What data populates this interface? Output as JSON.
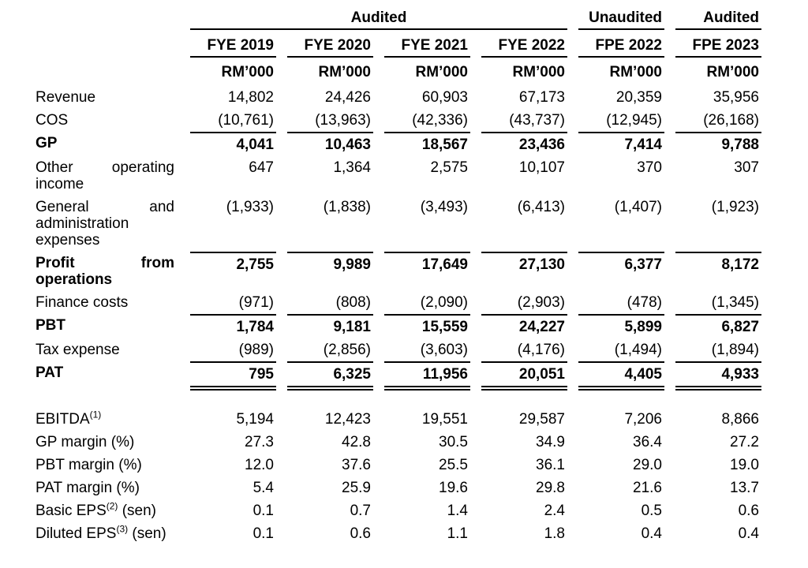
{
  "page": {
    "background_color": "#ffffff",
    "text_color": "#000000"
  },
  "table": {
    "audit_groups": [
      {
        "label": "Audited",
        "span": 4
      },
      {
        "label": "Unaudited",
        "span": 1
      },
      {
        "label": "Audited",
        "span": 1
      }
    ],
    "columns": [
      "FYE 2019",
      "FYE 2020",
      "FYE 2021",
      "FYE 2022",
      "FPE 2022",
      "FPE 2023"
    ],
    "unit": "RM’000",
    "rows": [
      {
        "label": "Revenue",
        "bold": false,
        "line_above": false,
        "double_below": false,
        "values": [
          "14,802",
          "24,426",
          "60,903",
          "67,173",
          "20,359",
          "35,956"
        ]
      },
      {
        "label": "COS",
        "bold": false,
        "line_above": false,
        "double_below": false,
        "values": [
          "(10,761)",
          "(13,963)",
          "(42,336)",
          "(43,737)",
          "(12,945)",
          "(26,168)"
        ]
      },
      {
        "label": "GP",
        "bold": true,
        "line_above": true,
        "double_below": false,
        "values": [
          "4,041",
          "10,463",
          "18,567",
          "23,436",
          "7,414",
          "9,788"
        ]
      },
      {
        "label": "Other operating income",
        "bold": false,
        "line_above": false,
        "double_below": false,
        "values": [
          "647",
          "1,364",
          "2,575",
          "10,107",
          "370",
          "307"
        ]
      },
      {
        "label": "General and administration expenses",
        "bold": false,
        "line_above": false,
        "double_below": false,
        "values": [
          "(1,933)",
          "(1,838)",
          "(3,493)",
          "(6,413)",
          "(1,407)",
          "(1,923)"
        ]
      },
      {
        "label": "Profit from operations",
        "bold": true,
        "line_above": true,
        "double_below": false,
        "values": [
          "2,755",
          "9,989",
          "17,649",
          "27,130",
          "6,377",
          "8,172"
        ]
      },
      {
        "label": "Finance costs",
        "bold": false,
        "line_above": false,
        "double_below": false,
        "values": [
          "(971)",
          "(808)",
          "(2,090)",
          "(2,903)",
          "(478)",
          "(1,345)"
        ]
      },
      {
        "label": "PBT",
        "bold": true,
        "line_above": true,
        "double_below": false,
        "values": [
          "1,784",
          "9,181",
          "15,559",
          "24,227",
          "5,899",
          "6,827"
        ]
      },
      {
        "label": "Tax expense",
        "bold": false,
        "line_above": false,
        "double_below": false,
        "values": [
          "(989)",
          "(2,856)",
          "(3,603)",
          "(4,176)",
          "(1,494)",
          "(1,894)"
        ]
      },
      {
        "label": "PAT",
        "bold": true,
        "line_above": true,
        "double_below": true,
        "values": [
          "795",
          "6,325",
          "11,956",
          "20,051",
          "4,405",
          "4,933"
        ]
      }
    ],
    "metrics": [
      {
        "label": "EBITDA",
        "sup": "(1)",
        "suffix": "",
        "values": [
          "5,194",
          "12,423",
          "19,551",
          "29,587",
          "7,206",
          "8,866"
        ]
      },
      {
        "label": "GP margin (%)",
        "sup": "",
        "suffix": "",
        "values": [
          "27.3",
          "42.8",
          "30.5",
          "34.9",
          "36.4",
          "27.2"
        ]
      },
      {
        "label": "PBT margin (%)",
        "sup": "",
        "suffix": "",
        "values": [
          "12.0",
          "37.6",
          "25.5",
          "36.1",
          "29.0",
          "19.0"
        ]
      },
      {
        "label": "PAT margin (%)",
        "sup": "",
        "suffix": "",
        "values": [
          "5.4",
          "25.9",
          "19.6",
          "29.8",
          "21.6",
          "13.7"
        ]
      },
      {
        "label": "Basic EPS",
        "sup": "(2)",
        "suffix": " (sen)",
        "values": [
          "0.1",
          "0.7",
          "1.4",
          "2.4",
          "0.5",
          "0.6"
        ]
      },
      {
        "label": "Diluted EPS",
        "sup": "(3)",
        "suffix": " (sen)",
        "values": [
          "0.1",
          "0.6",
          "1.1",
          "1.8",
          "0.4",
          "0.4"
        ]
      }
    ]
  }
}
